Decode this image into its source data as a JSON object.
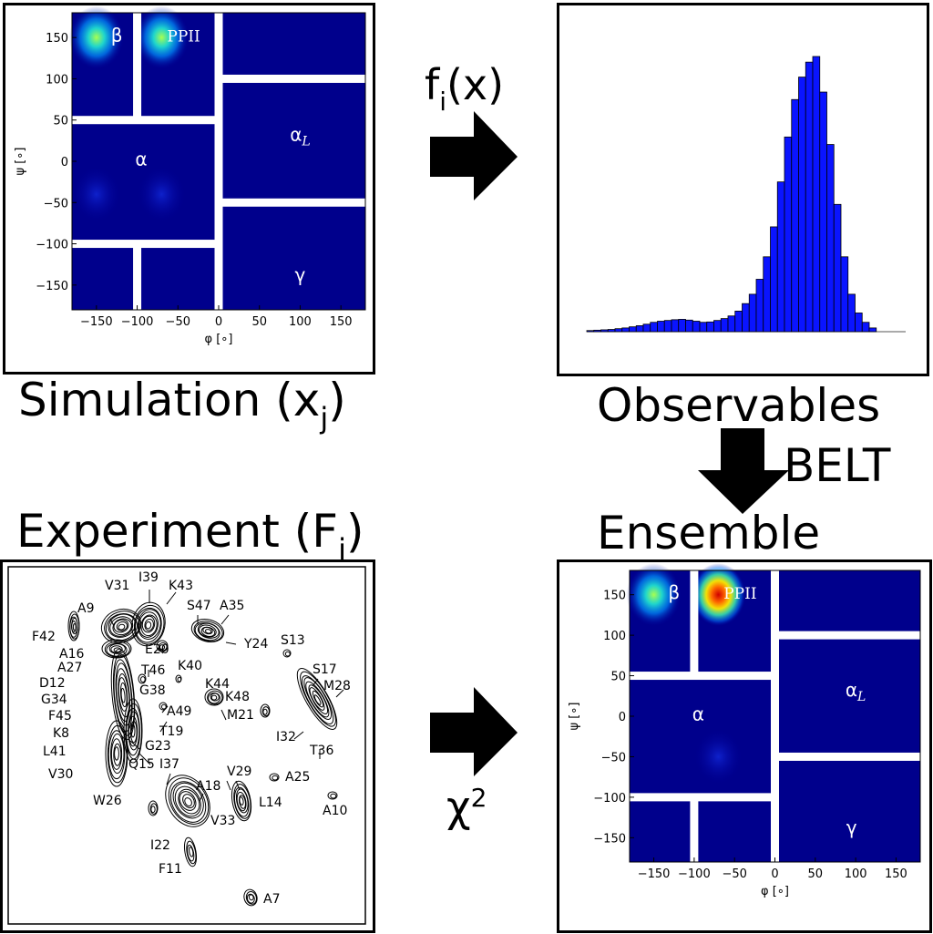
{
  "labels": {
    "simulation": "Simulation (x",
    "simulation_sub": "j",
    "simulation_close": ")",
    "observables": "Observables",
    "experiment": "Experiment (F",
    "experiment_sub": "i",
    "experiment_close": ")",
    "ensemble": "Ensemble",
    "belt": "BELT",
    "fix": "f",
    "fix_sub": "i",
    "fix_rest": "(x)",
    "chi": "χ",
    "chi_sup": "2"
  },
  "ramachandran": {
    "xlabel": "φ [∘]",
    "ylabel": "ψ [∘]",
    "xticks": [
      "−150",
      "−100",
      "−50",
      "0",
      "50",
      "100",
      "150"
    ],
    "yticks": [
      "150",
      "100",
      "50",
      "0",
      "−50",
      "−100",
      "−150"
    ],
    "regions": {
      "beta": "β",
      "ppii": "PPII",
      "alpha": "α",
      "alphaL": "α",
      "alphaL_sub": "L",
      "gamma": "γ"
    }
  },
  "chart_data": [
    {
      "type": "heatmap",
      "name": "simulation",
      "xlim": [
        -180,
        180
      ],
      "ylim": [
        -180,
        180
      ],
      "hotspots": [
        {
          "x": -150,
          "y": 150,
          "level": 0.6
        },
        {
          "x": -70,
          "y": 150,
          "level": 0.55
        },
        {
          "x": -70,
          "y": -40,
          "level": 0.1
        },
        {
          "x": -150,
          "y": -40,
          "level": 0.08
        }
      ]
    },
    {
      "type": "bar",
      "name": "observables",
      "values": [
        0.3,
        0.4,
        0.5,
        0.6,
        0.8,
        1,
        1.3,
        1.6,
        2,
        2.5,
        2.8,
        3,
        3.2,
        3.3,
        3.1,
        2.8,
        2.5,
        2.6,
        3,
        3.5,
        4.2,
        5.5,
        7.5,
        10,
        14,
        20,
        28,
        40,
        52,
        62,
        68,
        72,
        73.5,
        64,
        50,
        34,
        20,
        10,
        5,
        2.5,
        1
      ]
    },
    {
      "type": "heatmap",
      "name": "ensemble",
      "xlim": [
        -180,
        180
      ],
      "ylim": [
        -180,
        180
      ],
      "hotspots": [
        {
          "x": -150,
          "y": 150,
          "level": 0.5
        },
        {
          "x": -70,
          "y": 150,
          "level": 1.0
        },
        {
          "x": -70,
          "y": -50,
          "level": 0.08
        }
      ]
    }
  ],
  "nmr": {
    "peaks": [
      {
        "label": "V31"
      },
      {
        "label": "I39"
      },
      {
        "label": "K43"
      },
      {
        "label": "A9"
      },
      {
        "label": "S47"
      },
      {
        "label": "A35"
      },
      {
        "label": "F42"
      },
      {
        "label": "E20"
      },
      {
        "label": "Y24"
      },
      {
        "label": "A16"
      },
      {
        "label": "S13"
      },
      {
        "label": "A27"
      },
      {
        "label": "T46"
      },
      {
        "label": "K40"
      },
      {
        "label": "S17"
      },
      {
        "label": "D12"
      },
      {
        "label": "M28"
      },
      {
        "label": "K44"
      },
      {
        "label": "G34"
      },
      {
        "label": "G38"
      },
      {
        "label": "K48"
      },
      {
        "label": "F45"
      },
      {
        "label": "A49"
      },
      {
        "label": "M21"
      },
      {
        "label": "T19"
      },
      {
        "label": "K8"
      },
      {
        "label": "I32"
      },
      {
        "label": "G23"
      },
      {
        "label": "L41"
      },
      {
        "label": "T36"
      },
      {
        "label": "Q15"
      },
      {
        "label": "I37"
      },
      {
        "label": "V29"
      },
      {
        "label": "V30"
      },
      {
        "label": "A18"
      },
      {
        "label": "A25"
      },
      {
        "label": "W26"
      },
      {
        "label": "L14"
      },
      {
        "label": "A10"
      },
      {
        "label": "V33"
      },
      {
        "label": "I22"
      },
      {
        "label": "F11"
      },
      {
        "label": "A7"
      }
    ]
  }
}
